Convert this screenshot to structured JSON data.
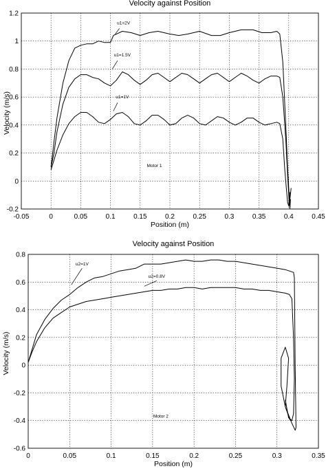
{
  "chart_data": [
    {
      "type": "line",
      "title": "Velocity against Position",
      "xlabel": "Position (m)",
      "ylabel": "Velocity (m/s)",
      "xlim": [
        -0.05,
        0.45
      ],
      "ylim": [
        -0.2,
        1.2
      ],
      "xticks": [
        "-0.05",
        "0",
        "0.05",
        "0.1",
        "0.15",
        "0.2",
        "0.25",
        "0.3",
        "0.35",
        "0.4",
        "0.45"
      ],
      "yticks": [
        "-0.2",
        "0",
        "0.2",
        "0.4",
        "0.6",
        "0.8",
        "1",
        "1.2"
      ],
      "grid": true,
      "annotations": [
        "u1=2V",
        "u1=1.5V",
        "u1=1V",
        "Motor 1"
      ],
      "series": [
        {
          "name": "u1=2V",
          "points": [
            [
              0,
              0.1
            ],
            [
              0.005,
              0.28
            ],
            [
              0.01,
              0.45
            ],
            [
              0.02,
              0.7
            ],
            [
              0.03,
              0.86
            ],
            [
              0.04,
              0.95
            ],
            [
              0.05,
              0.97
            ],
            [
              0.06,
              0.98
            ],
            [
              0.07,
              0.98
            ],
            [
              0.08,
              1.0
            ],
            [
              0.09,
              0.99
            ],
            [
              0.1,
              0.99
            ],
            [
              0.105,
              1.04
            ],
            [
              0.12,
              1.07
            ],
            [
              0.135,
              1.06
            ],
            [
              0.15,
              1.04
            ],
            [
              0.165,
              1.06
            ],
            [
              0.18,
              1.07
            ],
            [
              0.2,
              1.05
            ],
            [
              0.215,
              1.04
            ],
            [
              0.23,
              1.05
            ],
            [
              0.25,
              1.07
            ],
            [
              0.27,
              1.04
            ],
            [
              0.285,
              1.04
            ],
            [
              0.3,
              1.06
            ],
            [
              0.32,
              1.08
            ],
            [
              0.34,
              1.08
            ],
            [
              0.355,
              1.06
            ],
            [
              0.37,
              1.06
            ],
            [
              0.38,
              1.07
            ],
            [
              0.385,
              1.05
            ],
            [
              0.39,
              0.85
            ],
            [
              0.395,
              0.4
            ],
            [
              0.398,
              0.1
            ],
            [
              0.4,
              -0.05
            ],
            [
              0.402,
              -0.2
            ],
            [
              0.403,
              -0.13
            ]
          ]
        },
        {
          "name": "u1=1.5V",
          "points": [
            [
              0,
              0.1
            ],
            [
              0.005,
              0.2
            ],
            [
              0.01,
              0.35
            ],
            [
              0.02,
              0.55
            ],
            [
              0.03,
              0.67
            ],
            [
              0.04,
              0.73
            ],
            [
              0.05,
              0.76
            ],
            [
              0.06,
              0.76
            ],
            [
              0.07,
              0.74
            ],
            [
              0.08,
              0.73
            ],
            [
              0.09,
              0.7
            ],
            [
              0.1,
              0.68
            ],
            [
              0.11,
              0.72
            ],
            [
              0.12,
              0.78
            ],
            [
              0.13,
              0.76
            ],
            [
              0.14,
              0.72
            ],
            [
              0.15,
              0.69
            ],
            [
              0.16,
              0.72
            ],
            [
              0.17,
              0.76
            ],
            [
              0.18,
              0.77
            ],
            [
              0.19,
              0.74
            ],
            [
              0.2,
              0.71
            ],
            [
              0.21,
              0.74
            ],
            [
              0.22,
              0.77
            ],
            [
              0.23,
              0.76
            ],
            [
              0.24,
              0.73
            ],
            [
              0.25,
              0.7
            ],
            [
              0.26,
              0.73
            ],
            [
              0.27,
              0.76
            ],
            [
              0.28,
              0.77
            ],
            [
              0.29,
              0.74
            ],
            [
              0.3,
              0.71
            ],
            [
              0.31,
              0.74
            ],
            [
              0.32,
              0.77
            ],
            [
              0.33,
              0.75
            ],
            [
              0.34,
              0.72
            ],
            [
              0.35,
              0.7
            ],
            [
              0.36,
              0.73
            ],
            [
              0.37,
              0.75
            ],
            [
              0.38,
              0.75
            ],
            [
              0.385,
              0.74
            ],
            [
              0.39,
              0.6
            ],
            [
              0.395,
              0.3
            ],
            [
              0.398,
              0.05
            ],
            [
              0.4,
              -0.1
            ],
            [
              0.401,
              -0.17
            ],
            [
              0.404,
              -0.05
            ]
          ]
        },
        {
          "name": "u1=1V",
          "points": [
            [
              0,
              0.08
            ],
            [
              0.005,
              0.15
            ],
            [
              0.01,
              0.22
            ],
            [
              0.02,
              0.33
            ],
            [
              0.03,
              0.41
            ],
            [
              0.04,
              0.46
            ],
            [
              0.05,
              0.49
            ],
            [
              0.06,
              0.49
            ],
            [
              0.07,
              0.46
            ],
            [
              0.08,
              0.42
            ],
            [
              0.09,
              0.41
            ],
            [
              0.1,
              0.44
            ],
            [
              0.11,
              0.48
            ],
            [
              0.12,
              0.49
            ],
            [
              0.13,
              0.46
            ],
            [
              0.14,
              0.41
            ],
            [
              0.15,
              0.4
            ],
            [
              0.16,
              0.43
            ],
            [
              0.17,
              0.47
            ],
            [
              0.18,
              0.47
            ],
            [
              0.19,
              0.44
            ],
            [
              0.2,
              0.4
            ],
            [
              0.21,
              0.41
            ],
            [
              0.22,
              0.45
            ],
            [
              0.23,
              0.47
            ],
            [
              0.24,
              0.45
            ],
            [
              0.25,
              0.41
            ],
            [
              0.26,
              0.4
            ],
            [
              0.27,
              0.43
            ],
            [
              0.28,
              0.46
            ],
            [
              0.29,
              0.45
            ],
            [
              0.3,
              0.42
            ],
            [
              0.31,
              0.4
            ],
            [
              0.32,
              0.42
            ],
            [
              0.33,
              0.45
            ],
            [
              0.34,
              0.45
            ],
            [
              0.35,
              0.42
            ],
            [
              0.36,
              0.4
            ],
            [
              0.37,
              0.41
            ],
            [
              0.38,
              0.42
            ],
            [
              0.385,
              0.41
            ],
            [
              0.39,
              0.3
            ],
            [
              0.393,
              0.1
            ],
            [
              0.396,
              -0.05
            ],
            [
              0.398,
              -0.15
            ],
            [
              0.4,
              -0.18
            ],
            [
              0.402,
              -0.08
            ]
          ]
        }
      ]
    },
    {
      "type": "line",
      "title": "Velocity against Position",
      "xlabel": "Position (m)",
      "ylabel": "Velocity (m/s)",
      "xlim": [
        0,
        0.35
      ],
      "ylim": [
        -0.6,
        0.8
      ],
      "xticks": [
        "0",
        "0.05",
        "0.1",
        "0.15",
        "0.2",
        "0.25",
        "0.3",
        "0.35"
      ],
      "yticks": [
        "-0.6",
        "-0.4",
        "-0.2",
        "0",
        "0.2",
        "0.4",
        "0.6",
        "0.8"
      ],
      "grid": true,
      "annotations": [
        "u2=1V",
        "u2=0.8V",
        "Motor 2"
      ],
      "series": [
        {
          "name": "u2=1V",
          "points": [
            [
              0,
              0.02
            ],
            [
              0.005,
              0.12
            ],
            [
              0.01,
              0.22
            ],
            [
              0.02,
              0.33
            ],
            [
              0.03,
              0.41
            ],
            [
              0.04,
              0.47
            ],
            [
              0.05,
              0.51
            ],
            [
              0.06,
              0.56
            ],
            [
              0.07,
              0.6
            ],
            [
              0.08,
              0.63
            ],
            [
              0.09,
              0.64
            ],
            [
              0.1,
              0.66
            ],
            [
              0.11,
              0.68
            ],
            [
              0.12,
              0.69
            ],
            [
              0.13,
              0.7
            ],
            [
              0.14,
              0.73
            ],
            [
              0.15,
              0.73
            ],
            [
              0.16,
              0.73
            ],
            [
              0.17,
              0.74
            ],
            [
              0.18,
              0.75
            ],
            [
              0.19,
              0.76
            ],
            [
              0.2,
              0.75
            ],
            [
              0.21,
              0.75
            ],
            [
              0.22,
              0.76
            ],
            [
              0.23,
              0.76
            ],
            [
              0.24,
              0.75
            ],
            [
              0.25,
              0.75
            ],
            [
              0.26,
              0.74
            ],
            [
              0.27,
              0.73
            ],
            [
              0.28,
              0.72
            ],
            [
              0.29,
              0.71
            ],
            [
              0.3,
              0.7
            ],
            [
              0.31,
              0.69
            ],
            [
              0.32,
              0.67
            ],
            [
              0.321,
              0.63
            ],
            [
              0.322,
              0.0
            ],
            [
              0.323,
              -0.45
            ],
            [
              0.322,
              -0.47
            ],
            [
              0.318,
              -0.42
            ],
            [
              0.31,
              -0.3
            ],
            [
              0.305,
              -0.15
            ],
            [
              0.305,
              0.05
            ],
            [
              0.31,
              0.13
            ],
            [
              0.314,
              0.05
            ],
            [
              0.312,
              -0.15
            ],
            [
              0.31,
              -0.3
            ],
            [
              0.316,
              -0.4
            ]
          ]
        },
        {
          "name": "u2=0.8V",
          "points": [
            [
              0,
              0.02
            ],
            [
              0.005,
              0.1
            ],
            [
              0.01,
              0.17
            ],
            [
              0.02,
              0.27
            ],
            [
              0.03,
              0.34
            ],
            [
              0.04,
              0.38
            ],
            [
              0.05,
              0.42
            ],
            [
              0.06,
              0.44
            ],
            [
              0.07,
              0.46
            ],
            [
              0.08,
              0.47
            ],
            [
              0.09,
              0.48
            ],
            [
              0.1,
              0.49
            ],
            [
              0.11,
              0.5
            ],
            [
              0.12,
              0.51
            ],
            [
              0.13,
              0.52
            ],
            [
              0.14,
              0.53
            ],
            [
              0.15,
              0.54
            ],
            [
              0.16,
              0.54
            ],
            [
              0.17,
              0.55
            ],
            [
              0.18,
              0.55
            ],
            [
              0.19,
              0.56
            ],
            [
              0.2,
              0.56
            ],
            [
              0.21,
              0.55
            ],
            [
              0.22,
              0.56
            ],
            [
              0.23,
              0.56
            ],
            [
              0.24,
              0.56
            ],
            [
              0.25,
              0.56
            ],
            [
              0.26,
              0.55
            ],
            [
              0.27,
              0.55
            ],
            [
              0.28,
              0.54
            ],
            [
              0.29,
              0.54
            ],
            [
              0.3,
              0.53
            ],
            [
              0.31,
              0.52
            ],
            [
              0.315,
              0.51
            ],
            [
              0.318,
              0.48
            ],
            [
              0.32,
              0.2
            ],
            [
              0.321,
              -0.1
            ],
            [
              0.32,
              -0.35
            ],
            [
              0.318,
              -0.4
            ],
            [
              0.314,
              -0.38
            ],
            [
              0.31,
              -0.25
            ]
          ]
        }
      ]
    }
  ]
}
